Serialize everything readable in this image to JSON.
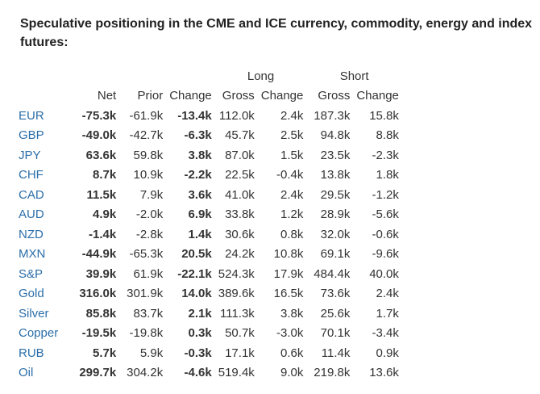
{
  "title": "Speculative positioning in the CME and ICE currency, commodity, energy and index futures:",
  "group_headers": {
    "long": "Long",
    "short": "Short"
  },
  "column_headers": [
    "Net",
    "Prior",
    "Change",
    "Gross",
    "Change",
    "Gross",
    "Change"
  ],
  "rows": [
    {
      "label": "EUR",
      "net": "-75.3k",
      "prior": "-61.9k",
      "change": "-13.4k",
      "long_gross": "112.0k",
      "long_change": "2.4k",
      "short_gross": "187.3k",
      "short_change": "15.8k"
    },
    {
      "label": "GBP",
      "net": "-49.0k",
      "prior": "-42.7k",
      "change": "-6.3k",
      "long_gross": "45.7k",
      "long_change": "2.5k",
      "short_gross": "94.8k",
      "short_change": "8.8k"
    },
    {
      "label": "JPY",
      "net": "63.6k",
      "prior": "59.8k",
      "change": "3.8k",
      "long_gross": "87.0k",
      "long_change": "1.5k",
      "short_gross": "23.5k",
      "short_change": "-2.3k"
    },
    {
      "label": "CHF",
      "net": "8.7k",
      "prior": "10.9k",
      "change": "-2.2k",
      "long_gross": "22.5k",
      "long_change": "-0.4k",
      "short_gross": "13.8k",
      "short_change": "1.8k"
    },
    {
      "label": "CAD",
      "net": "11.5k",
      "prior": "7.9k",
      "change": "3.6k",
      "long_gross": "41.0k",
      "long_change": "2.4k",
      "short_gross": "29.5k",
      "short_change": "-1.2k"
    },
    {
      "label": "AUD",
      "net": "4.9k",
      "prior": "-2.0k",
      "change": "6.9k",
      "long_gross": "33.8k",
      "long_change": "1.2k",
      "short_gross": "28.9k",
      "short_change": "-5.6k"
    },
    {
      "label": "NZD",
      "net": "-1.4k",
      "prior": "-2.8k",
      "change": "1.4k",
      "long_gross": "30.6k",
      "long_change": "0.8k",
      "short_gross": "32.0k",
      "short_change": "-0.6k"
    },
    {
      "label": "MXN",
      "net": "-44.9k",
      "prior": "-65.3k",
      "change": "20.5k",
      "long_gross": "24.2k",
      "long_change": "10.8k",
      "short_gross": "69.1k",
      "short_change": "-9.6k"
    },
    {
      "label": "S&P",
      "net": "39.9k",
      "prior": "61.9k",
      "change": "-22.1k",
      "long_gross": "524.3k",
      "long_change": "17.9k",
      "short_gross": "484.4k",
      "short_change": "40.0k"
    },
    {
      "label": "Gold",
      "net": "316.0k",
      "prior": "301.9k",
      "change": "14.0k",
      "long_gross": "389.6k",
      "long_change": "16.5k",
      "short_gross": "73.6k",
      "short_change": "2.4k"
    },
    {
      "label": "Silver",
      "net": "85.8k",
      "prior": "83.7k",
      "change": "2.1k",
      "long_gross": "111.3k",
      "long_change": "3.8k",
      "short_gross": "25.6k",
      "short_change": "1.7k"
    },
    {
      "label": "Copper",
      "net": "-19.5k",
      "prior": "-19.8k",
      "change": "0.3k",
      "long_gross": "50.7k",
      "long_change": "-3.0k",
      "short_gross": "70.1k",
      "short_change": "-3.4k"
    },
    {
      "label": "RUB",
      "net": "5.7k",
      "prior": "5.9k",
      "change": "-0.3k",
      "long_gross": "17.1k",
      "long_change": "0.6k",
      "short_gross": "11.4k",
      "short_change": "0.9k"
    },
    {
      "label": "Oil",
      "net": "299.7k",
      "prior": "304.2k",
      "change": "-4.6k",
      "long_gross": "519.4k",
      "long_change": "9.0k",
      "short_gross": "219.8k",
      "short_change": "13.6k"
    }
  ],
  "colors": {
    "label_link": "#2b6ea8",
    "text": "#333333"
  }
}
